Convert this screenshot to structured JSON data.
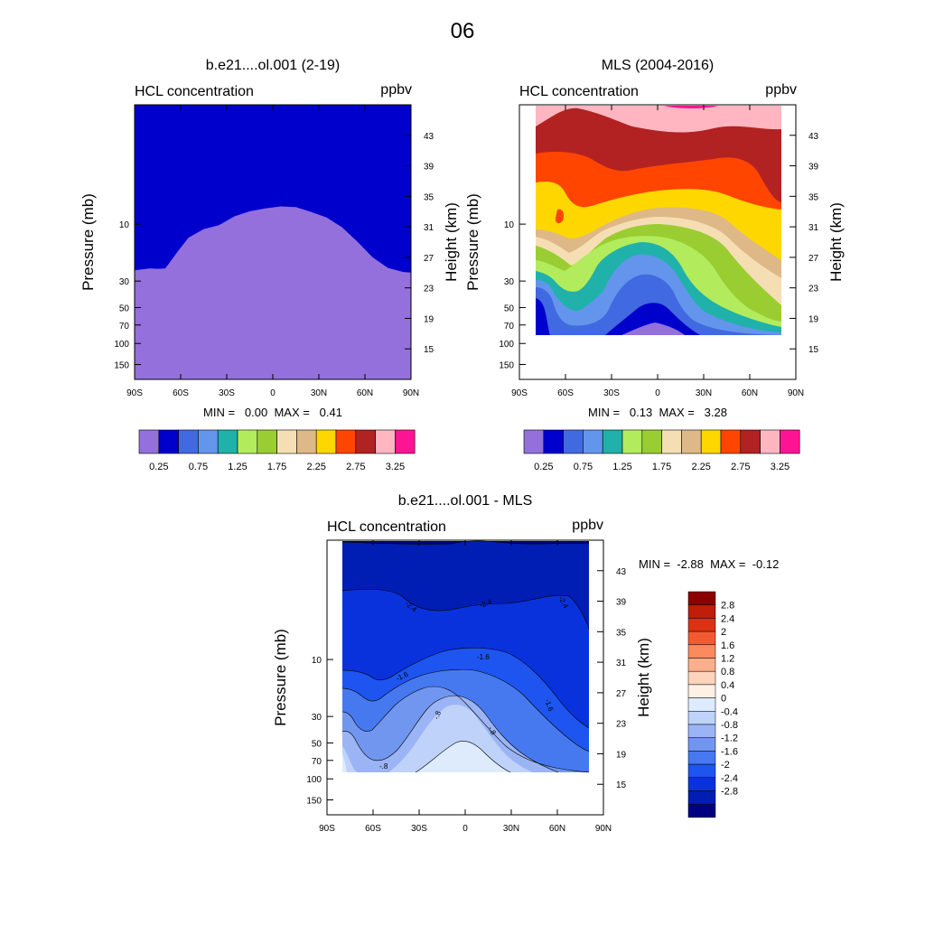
{
  "figure_title": "06",
  "colors": {
    "seq_palette": [
      "#9370DB",
      "#0000CD",
      "#4169E1",
      "#6495ED",
      "#20B2AA",
      "#B2EC5D",
      "#9ACD32",
      "#F5DEB3",
      "#DEB887",
      "#FFD700",
      "#FF4500",
      "#B22222",
      "#FFB6C1",
      "#FF1493"
    ],
    "diff_palette": [
      "#000080",
      "#001EB4",
      "#0A32DC",
      "#1E55F0",
      "#4678F0",
      "#7196F0",
      "#9BB4F5",
      "#BED2FA",
      "#DDEBFC",
      "#FFF0E6",
      "#FDD3BC",
      "#FCAF8C",
      "#FB8A5F",
      "#F25A32",
      "#DC3214",
      "#BE1E0A",
      "#8B0000"
    ]
  },
  "chart_data": [
    {
      "type": "heatmap",
      "title": "b.e21....ol.001 (2-19)",
      "left_label": "HCL concentration",
      "right_label": "ppbv",
      "ylabel": "Pressure (mb)",
      "ylabel_right": "Height (km)",
      "x_ticks": [
        "90S",
        "60S",
        "30S",
        "0",
        "30N",
        "60N",
        "90N"
      ],
      "x_values": [
        -90,
        -60,
        -30,
        0,
        30,
        60,
        90
      ],
      "pressure_ticks": [
        "10",
        "30",
        "50",
        "70",
        "100",
        "150"
      ],
      "pressure_values": [
        10,
        30,
        50,
        70,
        100,
        150
      ],
      "height_ticks": [
        "43",
        "39",
        "35",
        "31",
        "27",
        "23",
        "19",
        "15"
      ],
      "height_values": [
        43,
        39,
        35,
        31,
        27,
        23,
        19,
        15
      ],
      "ylim_mb": [
        1,
        200
      ],
      "stats": "MIN =   0.00  MAX =   0.41",
      "colorbar_labels": [
        "0.25",
        "0.75",
        "1.25",
        "1.75",
        "2.25",
        "2.75",
        "3.25"
      ],
      "boundary_mb": [
        [
          -90,
          24.4
        ],
        [
          -80,
          23.5
        ],
        [
          -75,
          23.7
        ],
        [
          -70,
          23.5
        ],
        [
          -62,
          17
        ],
        [
          -55,
          13
        ],
        [
          -45,
          11
        ],
        [
          -35,
          10.2
        ],
        [
          -25,
          8.6
        ],
        [
          -15,
          7.8
        ],
        [
          -5,
          7.4
        ],
        [
          5,
          7.1
        ],
        [
          15,
          7.2
        ],
        [
          25,
          7.9
        ],
        [
          35,
          8.8
        ],
        [
          45,
          10.6
        ],
        [
          55,
          14
        ],
        [
          65,
          19
        ],
        [
          75,
          23.3
        ],
        [
          85,
          25.2
        ],
        [
          90,
          25.5
        ]
      ]
    },
    {
      "type": "heatmap",
      "title": "MLS (2004-2016)",
      "left_label": "HCL concentration",
      "right_label": "ppbv",
      "ylabel": "Pressure (mb)",
      "ylabel_right": "Height (km)",
      "x_ticks": [
        "90S",
        "60S",
        "30S",
        "0",
        "30N",
        "60N",
        "90N"
      ],
      "x_values": [
        -90,
        -60,
        -30,
        0,
        30,
        60,
        90
      ],
      "pressure_ticks": [
        "10",
        "30",
        "50",
        "70",
        "100",
        "150"
      ],
      "pressure_values": [
        10,
        30,
        50,
        70,
        100,
        150
      ],
      "height_ticks": [
        "43",
        "39",
        "35",
        "31",
        "27",
        "23",
        "19",
        "15"
      ],
      "height_values": [
        43,
        39,
        35,
        31,
        27,
        23,
        19,
        15
      ],
      "ylim_mb": [
        1,
        200
      ],
      "data_extent": {
        "lat": [
          -80,
          80
        ],
        "mb": [
          1.0,
          83
        ]
      },
      "stats": "MIN =   0.13  MAX =   3.28",
      "colorbar_labels": [
        "0.25",
        "0.75",
        "1.25",
        "1.75",
        "2.25",
        "2.75",
        "3.25"
      ]
    },
    {
      "type": "heatmap",
      "title": "b.e21....ol.001 - MLS",
      "left_label": "HCL concentration",
      "right_label": "ppbv",
      "ylabel": "Pressure (mb)",
      "ylabel_right": "Height (km)",
      "x_ticks": [
        "90S",
        "60S",
        "30S",
        "0",
        "30N",
        "60N",
        "90N"
      ],
      "x_values": [
        -90,
        -60,
        -30,
        0,
        30,
        60,
        90
      ],
      "pressure_ticks": [
        "10",
        "30",
        "50",
        "70",
        "100",
        "150"
      ],
      "pressure_values": [
        10,
        30,
        50,
        70,
        100,
        150
      ],
      "height_ticks": [
        "43",
        "39",
        "35",
        "31",
        "27",
        "23",
        "19",
        "15"
      ],
      "height_values": [
        43,
        39,
        35,
        31,
        27,
        23,
        19,
        15
      ],
      "ylim_mb": [
        1,
        200
      ],
      "data_extent": {
        "lat": [
          -80,
          80
        ],
        "mb": [
          1.0,
          83
        ]
      },
      "stats": "MIN =  -2.88  MAX =  -0.12",
      "contour_labels": [
        "-2.4",
        "-2.4",
        "-2.4",
        "-1.6",
        "-1.6",
        "-1.6",
        "-.8",
        "-.8",
        "-.8"
      ],
      "colorbar_labels": [
        "2.8",
        "2.4",
        "2",
        "1.6",
        "1.2",
        "0.8",
        "0.4",
        "0",
        "-0.4",
        "-0.8",
        "-1.2",
        "-1.6",
        "-2",
        "-2.4",
        "-2.8"
      ]
    }
  ]
}
